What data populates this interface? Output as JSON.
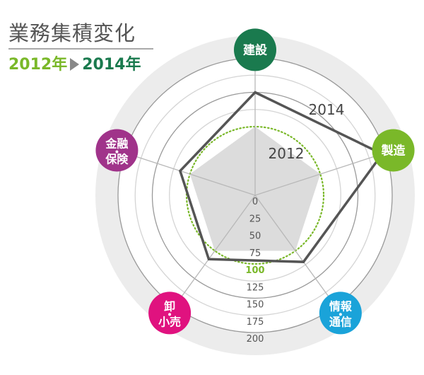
{
  "title": "業務集積変化",
  "legend": {
    "from": "2012年",
    "to": "2014年"
  },
  "chart_data": {
    "type": "radar",
    "title": "業務集積変化",
    "categories": [
      "建設",
      "製造",
      "情報・通信",
      "卸・小売",
      "金融・保険"
    ],
    "category_lines": [
      [
        "建設"
      ],
      [
        "製造"
      ],
      [
        "情報",
        "通信"
      ],
      [
        "卸",
        "小売"
      ],
      [
        "金融",
        "保険"
      ]
    ],
    "category_colors": [
      "#1a7a4e",
      "#7ab829",
      "#1aa3d9",
      "#e0127f",
      "#a0338a"
    ],
    "series": [
      {
        "name": "2012",
        "values": [
          100,
          100,
          100,
          100,
          100
        ],
        "style": "filled",
        "color": "#dcdcdc"
      },
      {
        "name": "2014",
        "values": [
          150,
          195,
          120,
          115,
          115
        ],
        "style": "line",
        "color": "#555555"
      }
    ],
    "ticks": [
      "0",
      "25",
      "50",
      "75",
      "100",
      "125",
      "150",
      "175",
      "200"
    ],
    "tick_values": [
      0,
      25,
      50,
      75,
      100,
      125,
      150,
      175,
      200
    ],
    "highlight_tick": 100,
    "highlight_color": "#7ab829",
    "range": [
      0,
      200
    ]
  }
}
